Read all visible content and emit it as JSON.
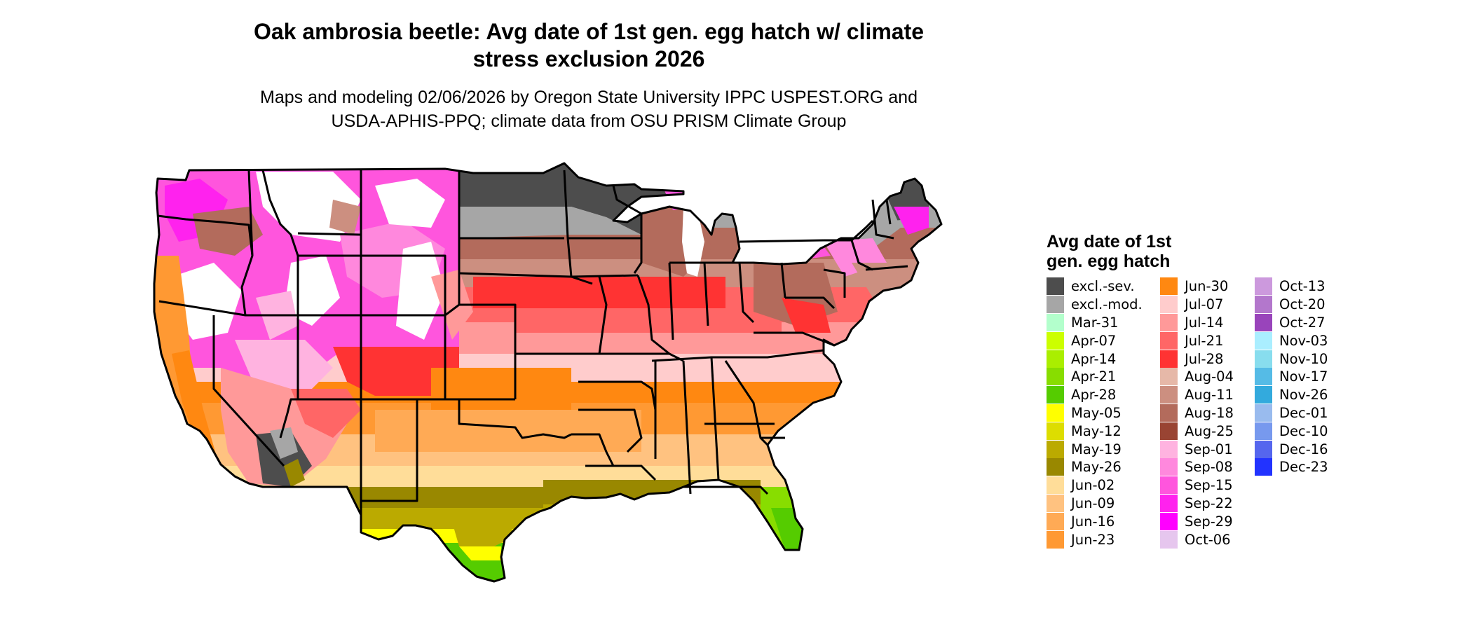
{
  "title": {
    "line1": "Oak ambrosia beetle: Avg date of 1st gen. egg hatch w/ climate",
    "line2": "stress exclusion 2026"
  },
  "subtitle": {
    "line1": "Maps and modeling 02/06/2026 by Oregon State University IPPC USPEST.ORG and",
    "line2": "USDA-APHIS-PPQ; climate data from OSU PRISM Climate Group"
  },
  "map": {
    "region": "contiguous-united-states",
    "boundary_color": "#000000"
  },
  "legend": {
    "title_line1": "Avg date of 1st",
    "title_line2": "gen. egg hatch",
    "columns": [
      [
        {
          "label": "excl.-sev.",
          "color": "#4d4d4d"
        },
        {
          "label": "excl.-mod.",
          "color": "#a6a6a6"
        },
        {
          "label": "Mar-31",
          "color": "#b3ffcc"
        },
        {
          "label": "Apr-07",
          "color": "#ccff00"
        },
        {
          "label": "Apr-14",
          "color": "#aaee00"
        },
        {
          "label": "Apr-21",
          "color": "#88dd00"
        },
        {
          "label": "Apr-28",
          "color": "#55cc00"
        },
        {
          "label": "May-05",
          "color": "#ffff00"
        },
        {
          "label": "May-12",
          "color": "#dddd00"
        },
        {
          "label": "May-19",
          "color": "#bbaa00"
        },
        {
          "label": "May-26",
          "color": "#998800"
        },
        {
          "label": "Jun-02",
          "color": "#ffdd99"
        },
        {
          "label": "Jun-09",
          "color": "#ffc280"
        },
        {
          "label": "Jun-16",
          "color": "#ffaa55"
        },
        {
          "label": "Jun-23",
          "color": "#ff9933"
        }
      ],
      [
        {
          "label": "Jun-30",
          "color": "#ff8811"
        },
        {
          "label": "Jul-07",
          "color": "#ffcccc"
        },
        {
          "label": "Jul-14",
          "color": "#ff9999"
        },
        {
          "label": "Jul-21",
          "color": "#ff6666"
        },
        {
          "label": "Jul-28",
          "color": "#ff3333"
        },
        {
          "label": "Aug-04",
          "color": "#e6b8a8"
        },
        {
          "label": "Aug-11",
          "color": "#cc8f80"
        },
        {
          "label": "Aug-18",
          "color": "#b36b5c"
        },
        {
          "label": "Aug-25",
          "color": "#994433"
        },
        {
          "label": "Sep-01",
          "color": "#ffb3e0"
        },
        {
          "label": "Sep-08",
          "color": "#ff88dd"
        },
        {
          "label": "Sep-15",
          "color": "#ff55dd"
        },
        {
          "label": "Sep-22",
          "color": "#ff22ee"
        },
        {
          "label": "Sep-29",
          "color": "#ff00ff"
        },
        {
          "label": "Oct-06",
          "color": "#e6c6ee"
        }
      ],
      [
        {
          "label": "Oct-13",
          "color": "#cc99dd"
        },
        {
          "label": "Oct-20",
          "color": "#b377cc"
        },
        {
          "label": "Oct-27",
          "color": "#9944bb"
        },
        {
          "label": "Nov-03",
          "color": "#aaeeff"
        },
        {
          "label": "Nov-10",
          "color": "#88ddee"
        },
        {
          "label": "Nov-17",
          "color": "#55bbe6"
        },
        {
          "label": "Nov-26",
          "color": "#33aadd"
        },
        {
          "label": "Dec-01",
          "color": "#99bbee"
        },
        {
          "label": "Dec-10",
          "color": "#7799ee"
        },
        {
          "label": "Dec-16",
          "color": "#5566ee"
        },
        {
          "label": "Dec-23",
          "color": "#2233ff"
        }
      ]
    ]
  }
}
